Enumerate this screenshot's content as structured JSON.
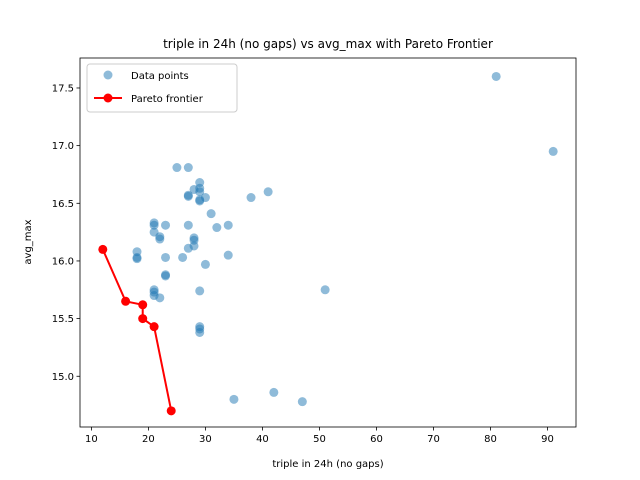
{
  "chart_data": {
    "type": "scatter",
    "title": "triple in 24h (no gaps) vs avg_max with Pareto Frontier",
    "xlabel": "triple in 24h (no gaps)",
    "ylabel": "avg_max",
    "xlim": [
      8,
      95
    ],
    "ylim": [
      14.56,
      17.76
    ],
    "xticks": [
      10,
      20,
      30,
      40,
      50,
      60,
      70,
      80,
      90
    ],
    "yticks": [
      15.0,
      15.5,
      16.0,
      16.5,
      17.0,
      17.5
    ],
    "legend_position": "top-left",
    "grid": false,
    "series": [
      {
        "name": "Data points",
        "kind": "scatter",
        "color": "#1f77b4",
        "points": [
          [
            81,
            17.6
          ],
          [
            91,
            16.95
          ],
          [
            25,
            16.81
          ],
          [
            27,
            16.81
          ],
          [
            29,
            16.68
          ],
          [
            29,
            16.63
          ],
          [
            28,
            16.62
          ],
          [
            29,
            16.6
          ],
          [
            41,
            16.6
          ],
          [
            27,
            16.57
          ],
          [
            27,
            16.56
          ],
          [
            30,
            16.55
          ],
          [
            38,
            16.55
          ],
          [
            29,
            16.53
          ],
          [
            29,
            16.52
          ],
          [
            31,
            16.41
          ],
          [
            21,
            16.33
          ],
          [
            21,
            16.31
          ],
          [
            23,
            16.31
          ],
          [
            27,
            16.31
          ],
          [
            32,
            16.29
          ],
          [
            34,
            16.31
          ],
          [
            21,
            16.25
          ],
          [
            22,
            16.21
          ],
          [
            22,
            16.19
          ],
          [
            28,
            16.2
          ],
          [
            28,
            16.18
          ],
          [
            28,
            16.13
          ],
          [
            27,
            16.11
          ],
          [
            18,
            16.08
          ],
          [
            18,
            16.03
          ],
          [
            18,
            16.02
          ],
          [
            23,
            16.03
          ],
          [
            26,
            16.03
          ],
          [
            34,
            16.05
          ],
          [
            30,
            15.97
          ],
          [
            23,
            15.88
          ],
          [
            23,
            15.87
          ],
          [
            21,
            15.75
          ],
          [
            21,
            15.73
          ],
          [
            29,
            15.74
          ],
          [
            51,
            15.75
          ],
          [
            21,
            15.7
          ],
          [
            22,
            15.68
          ],
          [
            29,
            15.43
          ],
          [
            29,
            15.41
          ],
          [
            29,
            15.38
          ],
          [
            42,
            14.86
          ],
          [
            35,
            14.8
          ],
          [
            47,
            14.78
          ]
        ]
      },
      {
        "name": "Pareto frontier",
        "kind": "line",
        "color": "#ff0000",
        "points": [
          [
            12,
            16.1
          ],
          [
            16,
            15.65
          ],
          [
            19,
            15.62
          ],
          [
            19,
            15.5
          ],
          [
            21,
            15.43
          ],
          [
            24,
            14.7
          ]
        ]
      }
    ]
  }
}
